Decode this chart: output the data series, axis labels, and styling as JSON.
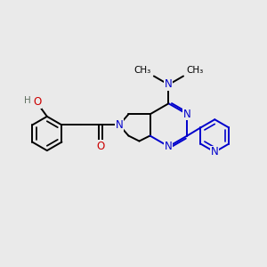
{
  "background_color": "#eaeaea",
  "bond_color": "#000000",
  "N_color": "#0000cc",
  "O_color": "#cc0000",
  "H_color": "#607060",
  "line_width": 1.4,
  "font_size": 8.5,
  "figsize": [
    3.0,
    3.0
  ],
  "dpi": 100,
  "xlim": [
    0,
    10
  ],
  "ylim": [
    0,
    10
  ]
}
